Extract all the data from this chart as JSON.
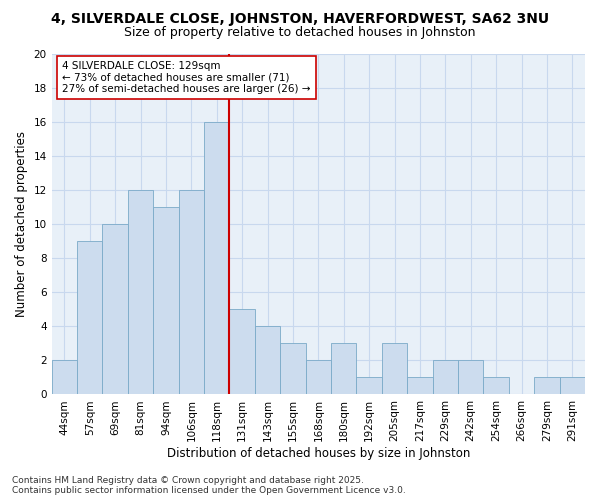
{
  "title": "4, SILVERDALE CLOSE, JOHNSTON, HAVERFORDWEST, SA62 3NU",
  "subtitle": "Size of property relative to detached houses in Johnston",
  "xlabel": "Distribution of detached houses by size in Johnston",
  "ylabel": "Number of detached properties",
  "categories": [
    "44sqm",
    "57sqm",
    "69sqm",
    "81sqm",
    "94sqm",
    "106sqm",
    "118sqm",
    "131sqm",
    "143sqm",
    "155sqm",
    "168sqm",
    "180sqm",
    "192sqm",
    "205sqm",
    "217sqm",
    "229sqm",
    "242sqm",
    "254sqm",
    "266sqm",
    "279sqm",
    "291sqm"
  ],
  "values": [
    2,
    9,
    10,
    12,
    11,
    12,
    16,
    5,
    4,
    3,
    2,
    3,
    1,
    3,
    1,
    2,
    2,
    1,
    0,
    1,
    1
  ],
  "bar_color": "#ccdcee",
  "bar_edge_color": "#7aaac8",
  "vline_color": "#cc0000",
  "annotation_line1": "4 SILVERDALE CLOSE: 129sqm",
  "annotation_line2": "← 73% of detached houses are smaller (71)",
  "annotation_line3": "27% of semi-detached houses are larger (26) →",
  "annotation_box_facecolor": "#ffffff",
  "annotation_box_edgecolor": "#cc0000",
  "ylim": [
    0,
    20
  ],
  "yticks": [
    0,
    2,
    4,
    6,
    8,
    10,
    12,
    14,
    16,
    18,
    20
  ],
  "grid_color": "#c8d8ee",
  "plot_bg_color": "#e8f0f8",
  "fig_bg_color": "#ffffff",
  "title_fontsize": 10,
  "subtitle_fontsize": 9,
  "axis_label_fontsize": 8.5,
  "tick_fontsize": 7.5,
  "annotation_fontsize": 7.5,
  "footer_fontsize": 6.5,
  "footer_text": "Contains HM Land Registry data © Crown copyright and database right 2025.\nContains public sector information licensed under the Open Government Licence v3.0."
}
